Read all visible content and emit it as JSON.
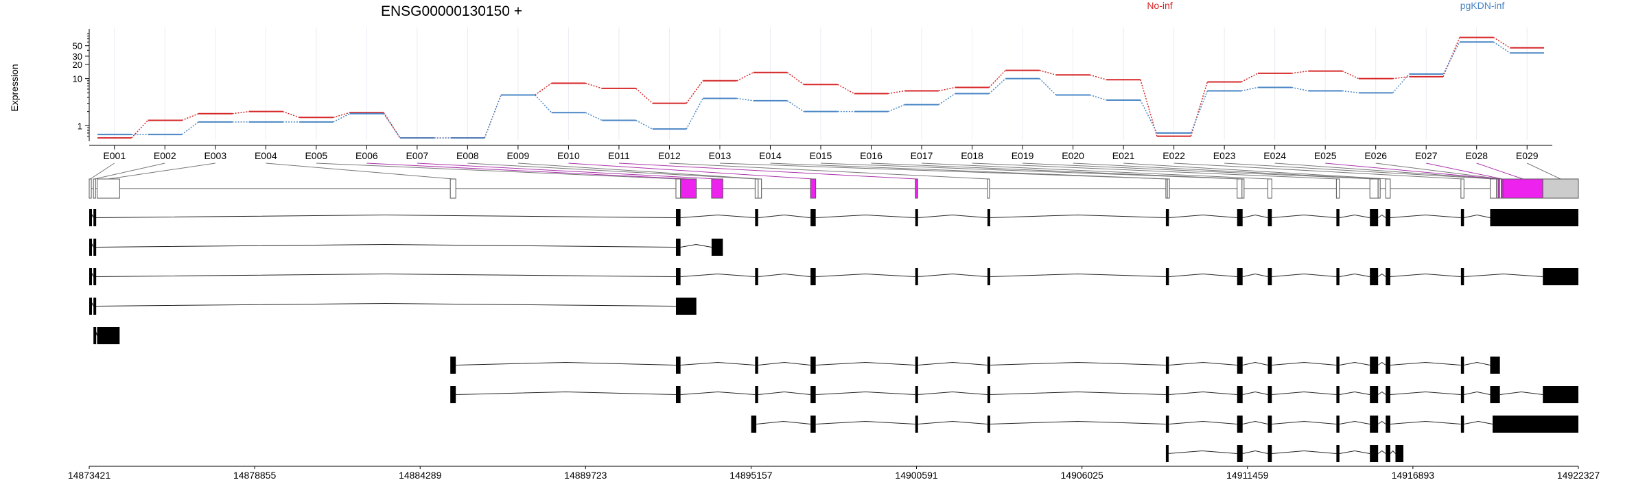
{
  "chart_data": {
    "type": "line",
    "title": "ENSG00000130150 +",
    "ylabel": "Expression",
    "yscale": "log",
    "ylim": [
      0.5,
      100
    ],
    "yticks": [
      1,
      10,
      20,
      30,
      50
    ],
    "grid": true,
    "legend_position": "top",
    "exon_bins": [
      "E001",
      "E002",
      "E003",
      "E004",
      "E005",
      "E006",
      "E007",
      "E008",
      "E009",
      "E010",
      "E011",
      "E012",
      "E013",
      "E014",
      "E015",
      "E016",
      "E017",
      "E018",
      "E019",
      "E020",
      "E021",
      "E022",
      "E023",
      "E024",
      "E025",
      "E026",
      "E027",
      "E028",
      "E029"
    ],
    "series": [
      {
        "name": "No-inf",
        "color": "#d62728",
        "values": [
          0.55,
          1.3,
          1.8,
          2.0,
          1.5,
          1.9,
          0.55,
          0.55,
          4.5,
          8.0,
          6.2,
          3.0,
          9.0,
          13.5,
          7.5,
          4.8,
          5.5,
          6.5,
          15.0,
          12.0,
          9.5,
          0.6,
          8.5,
          13.0,
          14.5,
          10.0,
          11.0,
          75.0,
          45.0
        ]
      },
      {
        "name": "pgKDN-inf",
        "color": "#4a86c5",
        "values": [
          0.65,
          0.65,
          1.2,
          1.2,
          1.2,
          1.8,
          0.55,
          0.55,
          4.5,
          1.9,
          1.3,
          0.85,
          3.8,
          3.4,
          2.0,
          2.0,
          2.8,
          4.8,
          10.0,
          4.5,
          3.5,
          0.7,
          5.5,
          6.5,
          5.5,
          5.0,
          12.5,
          60.0,
          35.0
        ]
      }
    ],
    "genomic_range": [
      14873421,
      14922327
    ],
    "coordinate_ticks": [
      "14873421",
      "14878855",
      "14884289",
      "14889723",
      "14895157",
      "14900591",
      "14906025",
      "14911459",
      "14916893",
      "14922327"
    ],
    "exons": [
      {
        "id": "E001",
        "start": 14873421,
        "end": 14873490,
        "highlight": false
      },
      {
        "id": "E002",
        "start": 14873560,
        "end": 14873630,
        "highlight": false
      },
      {
        "id": "E003",
        "start": 14873680,
        "end": 14874420,
        "highlight": false
      },
      {
        "id": "E004",
        "start": 14885280,
        "end": 14885460,
        "highlight": false
      },
      {
        "id": "E005",
        "start": 14892690,
        "end": 14892840,
        "highlight": false
      },
      {
        "id": "E006",
        "start": 14892840,
        "end": 14893360,
        "highlight": true
      },
      {
        "id": "E007",
        "start": 14893860,
        "end": 14894230,
        "highlight": true
      },
      {
        "id": "E008",
        "start": 14895290,
        "end": 14895390,
        "highlight": false
      },
      {
        "id": "E009",
        "start": 14895390,
        "end": 14895500,
        "highlight": false
      },
      {
        "id": "E010",
        "start": 14897110,
        "end": 14897280,
        "highlight": true
      },
      {
        "id": "E011",
        "start": 14900550,
        "end": 14900630,
        "highlight": true
      },
      {
        "id": "E012",
        "start": 14902920,
        "end": 14902980,
        "highlight": false
      },
      {
        "id": "E013",
        "start": 14908780,
        "end": 14908830,
        "highlight": false
      },
      {
        "id": "E014",
        "start": 14908830,
        "end": 14908880,
        "highlight": false
      },
      {
        "id": "E015",
        "start": 14911120,
        "end": 14911280,
        "highlight": false
      },
      {
        "id": "E016",
        "start": 14911280,
        "end": 14911300,
        "highlight": false
      },
      {
        "id": "E017",
        "start": 14912130,
        "end": 14912260,
        "highlight": false
      },
      {
        "id": "E018",
        "start": 14914380,
        "end": 14914480,
        "highlight": false
      },
      {
        "id": "E019",
        "start": 14915480,
        "end": 14915750,
        "highlight": false
      },
      {
        "id": "E020",
        "start": 14915750,
        "end": 14915800,
        "highlight": false
      },
      {
        "id": "E021",
        "start": 14916000,
        "end": 14916150,
        "highlight": false
      },
      {
        "id": "E022",
        "start": 14918470,
        "end": 14918570,
        "highlight": false
      },
      {
        "id": "E023",
        "start": 14919430,
        "end": 14919640,
        "highlight": false
      },
      {
        "id": "E024",
        "start": 14919640,
        "end": 14919690,
        "highlight": false
      },
      {
        "id": "E025",
        "start": 14919690,
        "end": 14919740,
        "highlight": true
      },
      {
        "id": "E026",
        "start": 14919740,
        "end": 14919790,
        "highlight": false
      },
      {
        "id": "E027",
        "start": 14919790,
        "end": 14919850,
        "highlight": true
      },
      {
        "id": "E028",
        "start": 14919850,
        "end": 14921160,
        "highlight": true
      },
      {
        "id": "E029",
        "start": 14921160,
        "end": 14922327,
        "highlight": false
      }
    ],
    "transcripts": [
      [
        [
          14873421,
          14873490
        ],
        [
          14873560,
          14873630
        ],
        [
          14892690,
          14892840
        ],
        [
          14895290,
          14895390
        ],
        [
          14897110,
          14897280
        ],
        [
          14900550,
          14900630
        ],
        [
          14902920,
          14902980
        ],
        [
          14908780,
          14908880
        ],
        [
          14911120,
          14911300
        ],
        [
          14912130,
          14912260
        ],
        [
          14914380,
          14914480
        ],
        [
          14915480,
          14915750
        ],
        [
          14916000,
          14916150
        ],
        [
          14918470,
          14918570
        ],
        [
          14919430,
          14922327
        ]
      ],
      [
        [
          14873421,
          14873490
        ],
        [
          14873560,
          14873630
        ],
        [
          14892690,
          14892840
        ],
        [
          14893860,
          14894230
        ]
      ],
      [
        [
          14873421,
          14873490
        ],
        [
          14873560,
          14873630
        ],
        [
          14892690,
          14892840
        ],
        [
          14895290,
          14895390
        ],
        [
          14897110,
          14897280
        ],
        [
          14900550,
          14900630
        ],
        [
          14902920,
          14902980
        ],
        [
          14908780,
          14908880
        ],
        [
          14911120,
          14911300
        ],
        [
          14912130,
          14912260
        ],
        [
          14914380,
          14914480
        ],
        [
          14915480,
          14915750
        ],
        [
          14916000,
          14916150
        ],
        [
          14918470,
          14918570
        ],
        [
          14921160,
          14922327
        ]
      ],
      [
        [
          14873421,
          14873490
        ],
        [
          14873560,
          14873630
        ],
        [
          14892690,
          14893360
        ]
      ],
      [
        [
          14873560,
          14873630
        ],
        [
          14873680,
          14874420
        ]
      ],
      [
        [
          14885280,
          14885460
        ],
        [
          14892690,
          14892840
        ],
        [
          14895290,
          14895390
        ],
        [
          14897110,
          14897280
        ],
        [
          14900550,
          14900630
        ],
        [
          14902920,
          14902980
        ],
        [
          14908780,
          14908880
        ],
        [
          14911120,
          14911300
        ],
        [
          14912130,
          14912260
        ],
        [
          14914380,
          14914480
        ],
        [
          14915480,
          14915750
        ],
        [
          14916000,
          14916150
        ],
        [
          14918470,
          14918570
        ],
        [
          14919430,
          14919750
        ]
      ],
      [
        [
          14885280,
          14885460
        ],
        [
          14892690,
          14892840
        ],
        [
          14895290,
          14895390
        ],
        [
          14897110,
          14897280
        ],
        [
          14900550,
          14900630
        ],
        [
          14902920,
          14902980
        ],
        [
          14908780,
          14908880
        ],
        [
          14911120,
          14911300
        ],
        [
          14912130,
          14912260
        ],
        [
          14914380,
          14914480
        ],
        [
          14915480,
          14915750
        ],
        [
          14916000,
          14916150
        ],
        [
          14918470,
          14918570
        ],
        [
          14919430,
          14919750
        ],
        [
          14921160,
          14922327
        ]
      ],
      [
        [
          14895160,
          14895330
        ],
        [
          14897110,
          14897280
        ],
        [
          14900550,
          14900630
        ],
        [
          14902920,
          14902980
        ],
        [
          14908780,
          14908880
        ],
        [
          14911120,
          14911300
        ],
        [
          14912130,
          14912260
        ],
        [
          14914380,
          14914480
        ],
        [
          14915480,
          14915750
        ],
        [
          14916000,
          14916150
        ],
        [
          14918470,
          14918570
        ],
        [
          14919510,
          14922327
        ]
      ],
      [
        [
          14908780,
          14908830
        ],
        [
          14911120,
          14911300
        ],
        [
          14912130,
          14912260
        ],
        [
          14914380,
          14914480
        ],
        [
          14915480,
          14915750
        ],
        [
          14916000,
          14916150
        ],
        [
          14916320,
          14916580
        ]
      ]
    ]
  }
}
